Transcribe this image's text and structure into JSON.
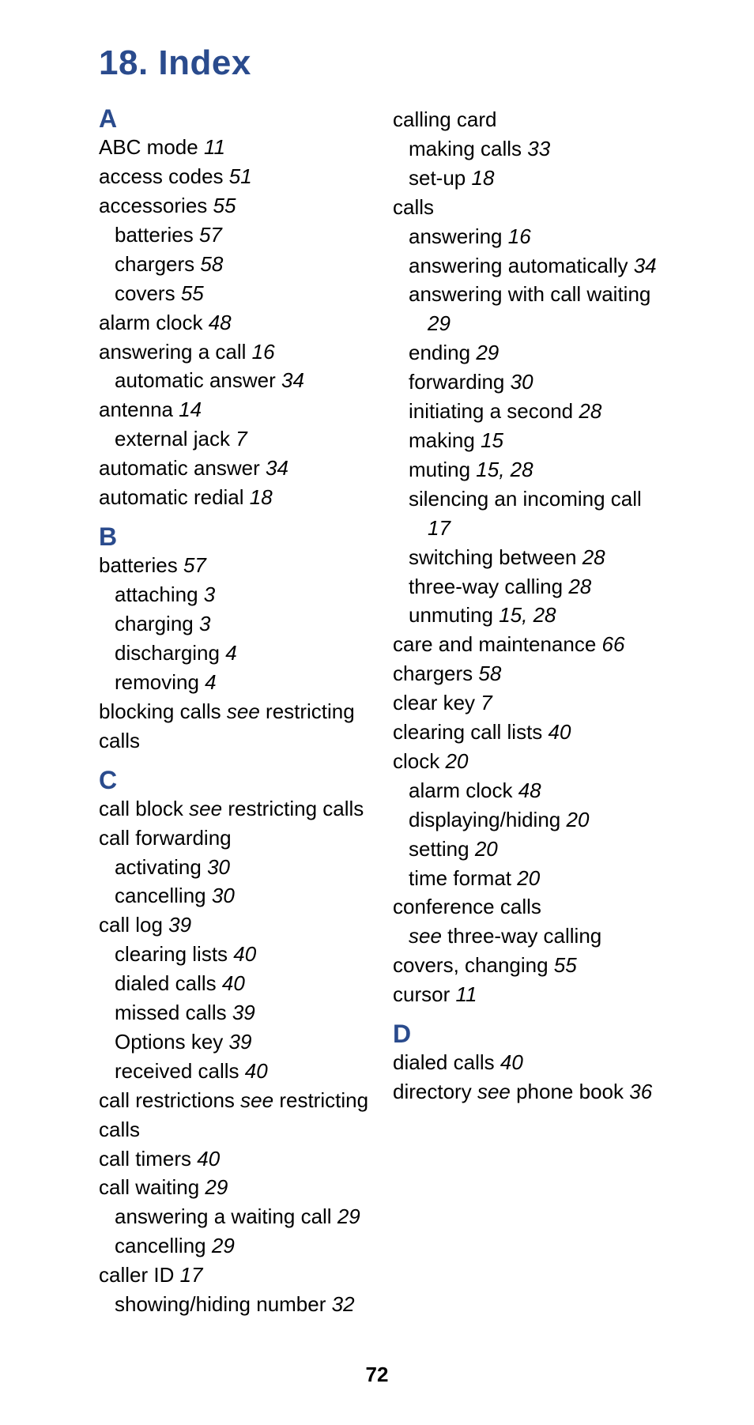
{
  "colors": {
    "heading": "#2a4b8d",
    "text": "#000000",
    "background": "#ffffff"
  },
  "typography": {
    "title_fontsize": 44,
    "letter_fontsize": 32,
    "body_fontsize": 26,
    "pagenum_fontsize": 26,
    "font_family": "Verdana, Geneva, sans-serif"
  },
  "title": "18. Index",
  "page_number": "72",
  "sections": [
    {
      "letter": "A",
      "space_above": false,
      "entries": [
        {
          "level": 0,
          "label": "ABC mode",
          "pages": "11"
        },
        {
          "level": 0,
          "label": "access codes",
          "pages": "51"
        },
        {
          "level": 0,
          "label": "accessories",
          "pages": "55"
        },
        {
          "level": 1,
          "label": "batteries",
          "pages": "57"
        },
        {
          "level": 1,
          "label": "chargers",
          "pages": "58"
        },
        {
          "level": 1,
          "label": "covers",
          "pages": "55"
        },
        {
          "level": 0,
          "label": "alarm clock",
          "pages": "48"
        },
        {
          "level": 0,
          "label": "answering a call",
          "pages": "16"
        },
        {
          "level": 1,
          "label": "automatic answer",
          "pages": "34"
        },
        {
          "level": 0,
          "label": "antenna",
          "pages": "14"
        },
        {
          "level": 1,
          "label": "external jack",
          "pages": "7"
        },
        {
          "level": 0,
          "label": "automatic answer",
          "pages": "34"
        },
        {
          "level": 0,
          "label": "automatic redial",
          "pages": "18"
        }
      ]
    },
    {
      "letter": "B",
      "space_above": true,
      "entries": [
        {
          "level": 0,
          "label": "batteries",
          "pages": "57"
        },
        {
          "level": 1,
          "label": "attaching",
          "pages": "3"
        },
        {
          "level": 1,
          "label": "charging",
          "pages": "3"
        },
        {
          "level": 1,
          "label": "discharging",
          "pages": "4"
        },
        {
          "level": 1,
          "label": "removing",
          "pages": "4"
        },
        {
          "level": 0,
          "label": "blocking calls",
          "see": "see",
          "see_target": "restricting calls"
        }
      ]
    },
    {
      "letter": "C",
      "space_above": true,
      "entries": [
        {
          "level": 0,
          "label": "call block",
          "see": "see",
          "see_target": "restricting calls"
        },
        {
          "level": 0,
          "label": "call forwarding"
        },
        {
          "level": 1,
          "label": "activating",
          "pages": "30"
        },
        {
          "level": 1,
          "label": "cancelling",
          "pages": "30"
        },
        {
          "level": 0,
          "label": "call log",
          "pages": "39"
        },
        {
          "level": 1,
          "label": "clearing lists",
          "pages": "40"
        },
        {
          "level": 1,
          "label": "dialed calls",
          "pages": "40"
        },
        {
          "level": 1,
          "label": "missed calls",
          "pages": "39"
        },
        {
          "level": 1,
          "label": "Options key",
          "pages": "39"
        },
        {
          "level": 1,
          "label": "received calls",
          "pages": "40"
        },
        {
          "level": 0,
          "label": "call restrictions",
          "see": "see",
          "see_target": "restricting calls"
        },
        {
          "level": 0,
          "label": "call timers",
          "pages": "40"
        },
        {
          "level": 0,
          "label": "call waiting",
          "pages": "29"
        },
        {
          "level": 1,
          "label": "answering a waiting call",
          "pages": "29"
        },
        {
          "level": 1,
          "label": "cancelling",
          "pages": "29"
        },
        {
          "level": 0,
          "label": "caller ID",
          "pages": "17"
        },
        {
          "level": 1,
          "label": "showing/hiding number",
          "pages": "32"
        },
        {
          "level": 0,
          "label": "calling card"
        },
        {
          "level": 1,
          "label": "making calls",
          "pages": "33"
        },
        {
          "level": 1,
          "label": "set-up",
          "pages": "18"
        },
        {
          "level": 0,
          "label": "calls"
        },
        {
          "level": 1,
          "label": "answering",
          "pages": "16"
        },
        {
          "level": 1,
          "label": "answering automatically",
          "pages": "34"
        },
        {
          "level": 1,
          "label": "answering with call waiting",
          "pages": "29"
        },
        {
          "level": 1,
          "label": "ending",
          "pages": "29"
        },
        {
          "level": 1,
          "label": "forwarding",
          "pages": "30"
        },
        {
          "level": 1,
          "label": "initiating a second",
          "pages": "28"
        },
        {
          "level": 1,
          "label": "making",
          "pages": "15"
        },
        {
          "level": 1,
          "label": "muting",
          "pages": "15, 28"
        },
        {
          "level": 1,
          "label": "silencing an incoming call",
          "pages": "17"
        },
        {
          "level": 1,
          "label": "switching between",
          "pages": "28"
        },
        {
          "level": 1,
          "label": "three-way calling",
          "pages": "28"
        },
        {
          "level": 1,
          "label": "unmuting",
          "pages": "15, 28"
        },
        {
          "level": 0,
          "label": "care and maintenance",
          "pages": "66"
        },
        {
          "level": 0,
          "label": "chargers",
          "pages": "58"
        },
        {
          "level": 0,
          "label": "clear key",
          "pages": "7"
        },
        {
          "level": 0,
          "label": "clearing call lists",
          "pages": "40"
        },
        {
          "level": 0,
          "label": "clock",
          "pages": "20"
        },
        {
          "level": 1,
          "label": "alarm clock",
          "pages": "48"
        },
        {
          "level": 1,
          "label": "displaying/hiding",
          "pages": "20"
        },
        {
          "level": 1,
          "label": "setting",
          "pages": "20"
        },
        {
          "level": 1,
          "label": "time format",
          "pages": "20"
        },
        {
          "level": 0,
          "label": "conference calls"
        },
        {
          "level": 1,
          "see": "see",
          "see_target": "three-way calling"
        },
        {
          "level": 0,
          "label": "covers, changing",
          "pages": "55"
        },
        {
          "level": 0,
          "label": "cursor",
          "pages": "11"
        }
      ]
    },
    {
      "letter": "D",
      "space_above": true,
      "entries": [
        {
          "level": 0,
          "label": "dialed calls",
          "pages": "40"
        },
        {
          "level": 0,
          "label": "directory",
          "see": "see",
          "see_target": "phone book",
          "pages": "36"
        }
      ]
    }
  ]
}
